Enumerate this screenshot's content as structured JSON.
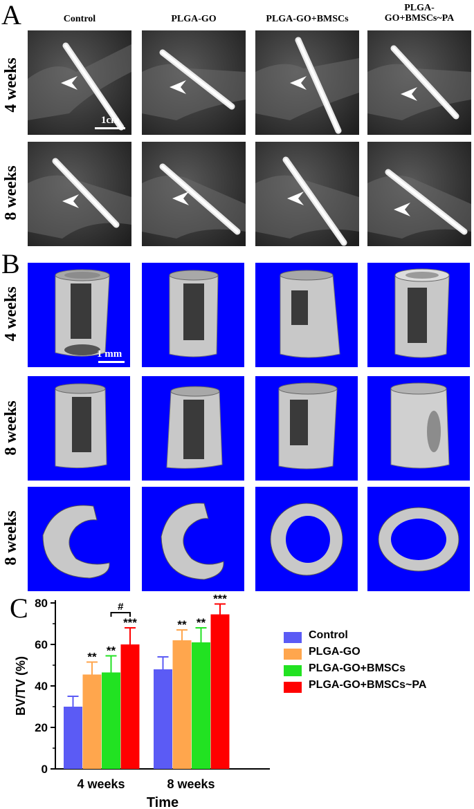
{
  "panels": {
    "a": "A",
    "b": "B",
    "c": "C"
  },
  "columns": [
    "Control",
    "PLGA-GO",
    "PLGA-GO+BMSCs",
    "PLGA-\nGO+BMSCs~PA"
  ],
  "row_labels_a": [
    "4 weeks",
    "8 weeks"
  ],
  "row_labels_b": [
    "4 weeks",
    "8 weeks",
    "8 weeks"
  ],
  "scale_a": "1cm",
  "scale_b": "1 mm",
  "colors": {
    "ct_background": "#0000ff",
    "series": [
      "#5b5bf5",
      "#ffa64d",
      "#22e222",
      "#ff0000"
    ]
  },
  "chart_data": {
    "type": "bar",
    "categories": [
      "4 weeks",
      "8 weeks"
    ],
    "series": [
      {
        "name": "Control",
        "values": [
          30,
          48
        ],
        "errors": [
          5,
          6
        ]
      },
      {
        "name": "PLGA-GO",
        "values": [
          45.5,
          62
        ],
        "errors": [
          6,
          5
        ]
      },
      {
        "name": "PLGA-GO+BMSCs",
        "values": [
          46.5,
          61
        ],
        "errors": [
          8,
          7
        ]
      },
      {
        "name": "PLGA-GO+BMSCs~PA",
        "values": [
          60,
          74.5
        ],
        "errors": [
          8,
          5
        ]
      }
    ],
    "significance": [
      [
        "",
        "**",
        "**",
        "***"
      ],
      [
        "",
        "**",
        "**",
        "***"
      ]
    ],
    "brackets": [
      "#",
      "##"
    ],
    "xlabel": "Time",
    "ylabel": "BV/TV (%)",
    "ylim": [
      0,
      80
    ],
    "yticks": [
      "0",
      "20",
      "40",
      "60",
      "80"
    ],
    "legend_position": "right"
  }
}
